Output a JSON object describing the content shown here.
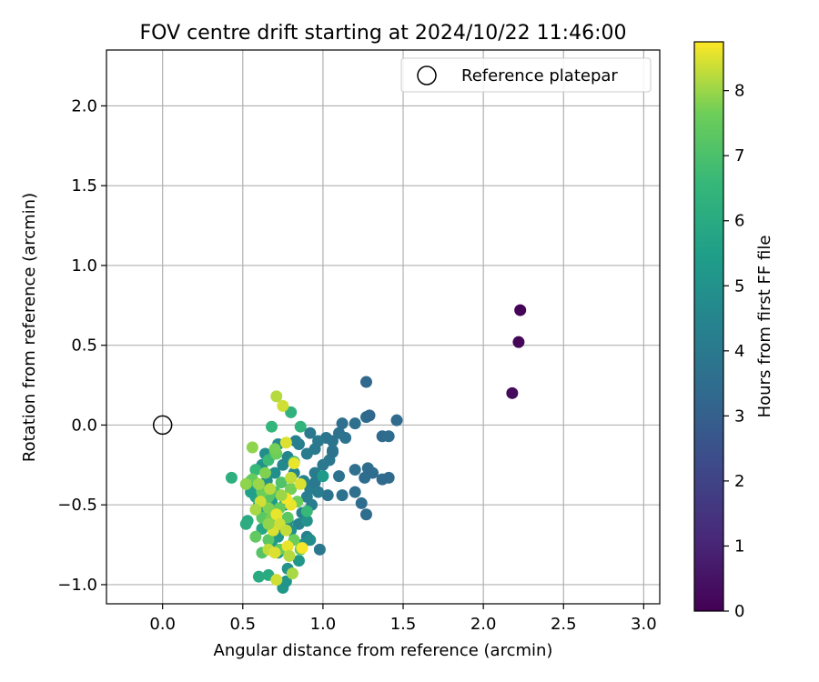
{
  "chart_data": {
    "type": "scatter",
    "title": "FOV centre drift starting at 2024/10/22 11:46:00",
    "xlabel": "Angular distance from reference (arcmin)",
    "ylabel": "Rotation from reference (arcmin)",
    "xlim": [
      -0.35,
      3.1
    ],
    "ylim": [
      -1.12,
      2.35
    ],
    "xticks": [
      0.0,
      0.5,
      1.0,
      1.5,
      2.0,
      2.5,
      3.0
    ],
    "xtick_labels": [
      "0.0",
      "0.5",
      "1.0",
      "1.5",
      "2.0",
      "2.5",
      "3.0"
    ],
    "yticks": [
      -1.0,
      -0.5,
      0.0,
      0.5,
      1.0,
      1.5,
      2.0
    ],
    "ytick_labels": [
      "−1.0",
      "−0.5",
      "0.0",
      "0.5",
      "1.0",
      "1.5",
      "2.0"
    ],
    "grid": true,
    "legend": {
      "placement": "top-right",
      "entries": [
        {
          "label": "Reference platepar",
          "marker": "open-circle"
        }
      ]
    },
    "reference": {
      "x": 0.0,
      "y": 0.0
    },
    "colorbar": {
      "label": "Hours from first FF file",
      "colormap": "viridis",
      "range": [
        0,
        8.75
      ],
      "ticks": [
        0,
        1,
        2,
        3,
        4,
        5,
        6,
        7,
        8
      ],
      "tick_labels": [
        "0",
        "1",
        "2",
        "3",
        "4",
        "5",
        "6",
        "7",
        "8"
      ]
    },
    "points": [
      {
        "x": 2.23,
        "y": 0.72,
        "h": 0.05
      },
      {
        "x": 2.22,
        "y": 0.52,
        "h": 0.15
      },
      {
        "x": 2.18,
        "y": 0.2,
        "h": 0.25
      },
      {
        "x": 1.27,
        "y": 0.27,
        "h": 3.3
      },
      {
        "x": 1.46,
        "y": 0.03,
        "h": 3.4
      },
      {
        "x": 1.27,
        "y": 0.05,
        "h": 3.5
      },
      {
        "x": 1.29,
        "y": 0.06,
        "h": 3.3
      },
      {
        "x": 1.37,
        "y": -0.07,
        "h": 3.4
      },
      {
        "x": 1.41,
        "y": -0.07,
        "h": 3.5
      },
      {
        "x": 1.2,
        "y": 0.01,
        "h": 3.6
      },
      {
        "x": 1.12,
        "y": 0.01,
        "h": 3.6
      },
      {
        "x": 1.14,
        "y": -0.08,
        "h": 3.7
      },
      {
        "x": 1.1,
        "y": -0.05,
        "h": 3.7
      },
      {
        "x": 1.06,
        "y": -0.1,
        "h": 3.8
      },
      {
        "x": 1.02,
        "y": -0.08,
        "h": 3.8
      },
      {
        "x": 1.06,
        "y": -0.16,
        "h": 3.9
      },
      {
        "x": 1.04,
        "y": -0.22,
        "h": 3.9
      },
      {
        "x": 1.2,
        "y": -0.28,
        "h": 3.6
      },
      {
        "x": 1.28,
        "y": -0.27,
        "h": 3.5
      },
      {
        "x": 1.31,
        "y": -0.3,
        "h": 3.5
      },
      {
        "x": 1.37,
        "y": -0.34,
        "h": 3.4
      },
      {
        "x": 1.41,
        "y": -0.33,
        "h": 3.4
      },
      {
        "x": 1.26,
        "y": -0.33,
        "h": 3.5
      },
      {
        "x": 1.1,
        "y": -0.32,
        "h": 3.7
      },
      {
        "x": 1.2,
        "y": -0.42,
        "h": 3.6
      },
      {
        "x": 1.24,
        "y": -0.49,
        "h": 3.5
      },
      {
        "x": 1.27,
        "y": -0.56,
        "h": 3.5
      },
      {
        "x": 1.12,
        "y": -0.44,
        "h": 3.7
      },
      {
        "x": 1.03,
        "y": -0.44,
        "h": 3.8
      },
      {
        "x": 0.98,
        "y": -0.78,
        "h": 3.9
      },
      {
        "x": 1.06,
        "y": -0.17,
        "h": 3.8
      },
      {
        "x": 0.95,
        "y": -0.15,
        "h": 4.0
      },
      {
        "x": 0.9,
        "y": -0.18,
        "h": 4.1
      },
      {
        "x": 0.85,
        "y": -0.12,
        "h": 4.2
      },
      {
        "x": 0.83,
        "y": -0.1,
        "h": 4.3
      },
      {
        "x": 0.92,
        "y": -0.05,
        "h": 4.0
      },
      {
        "x": 0.97,
        "y": -0.1,
        "h": 4.0
      },
      {
        "x": 1.0,
        "y": -0.25,
        "h": 4.0
      },
      {
        "x": 0.95,
        "y": -0.3,
        "h": 4.1
      },
      {
        "x": 0.92,
        "y": -0.4,
        "h": 4.2
      },
      {
        "x": 0.9,
        "y": -0.45,
        "h": 4.2
      },
      {
        "x": 0.87,
        "y": -0.55,
        "h": 4.3
      },
      {
        "x": 0.85,
        "y": -0.62,
        "h": 4.4
      },
      {
        "x": 0.9,
        "y": -0.7,
        "h": 4.3
      },
      {
        "x": 0.88,
        "y": -0.35,
        "h": 4.4
      },
      {
        "x": 0.82,
        "y": -0.3,
        "h": 4.5
      },
      {
        "x": 0.8,
        "y": -0.4,
        "h": 4.5
      },
      {
        "x": 0.76,
        "y": -0.5,
        "h": 4.6
      },
      {
        "x": 0.78,
        "y": -0.6,
        "h": 4.7
      },
      {
        "x": 0.8,
        "y": -0.66,
        "h": 4.8
      },
      {
        "x": 0.75,
        "y": -0.25,
        "h": 4.6
      },
      {
        "x": 0.7,
        "y": -0.3,
        "h": 4.9
      },
      {
        "x": 0.65,
        "y": -0.35,
        "h": 5.0
      },
      {
        "x": 0.62,
        "y": -0.25,
        "h": 5.0
      },
      {
        "x": 0.64,
        "y": -0.18,
        "h": 4.8
      },
      {
        "x": 0.72,
        "y": -0.12,
        "h": 4.7
      },
      {
        "x": 0.78,
        "y": -0.2,
        "h": 4.5
      },
      {
        "x": 0.75,
        "y": -1.02,
        "h": 5.2
      },
      {
        "x": 0.77,
        "y": -0.98,
        "h": 5.1
      },
      {
        "x": 0.78,
        "y": -0.9,
        "h": 5.0
      },
      {
        "x": 0.72,
        "y": -0.8,
        "h": 5.1
      },
      {
        "x": 0.68,
        "y": -0.75,
        "h": 5.3
      },
      {
        "x": 0.72,
        "y": -0.7,
        "h": 5.2
      },
      {
        "x": 0.75,
        "y": -0.65,
        "h": 5.1
      },
      {
        "x": 0.67,
        "y": -0.6,
        "h": 5.4
      },
      {
        "x": 0.63,
        "y": -0.55,
        "h": 5.5
      },
      {
        "x": 0.68,
        "y": -0.48,
        "h": 5.3
      },
      {
        "x": 0.6,
        "y": -0.5,
        "h": 5.6
      },
      {
        "x": 0.58,
        "y": -0.45,
        "h": 5.7
      },
      {
        "x": 0.55,
        "y": -0.42,
        "h": 5.5
      },
      {
        "x": 0.95,
        "y": -0.36,
        "h": 4.0
      },
      {
        "x": 0.97,
        "y": -0.42,
        "h": 4.1
      },
      {
        "x": 0.93,
        "y": -0.5,
        "h": 4.2
      },
      {
        "x": 1.0,
        "y": -0.32,
        "h": 5.4
      },
      {
        "x": 0.9,
        "y": -0.6,
        "h": 5.0
      },
      {
        "x": 0.87,
        "y": -0.75,
        "h": 5.0
      },
      {
        "x": 0.92,
        "y": -0.72,
        "h": 4.8
      },
      {
        "x": 0.85,
        "y": -0.85,
        "h": 5.2
      },
      {
        "x": 0.62,
        "y": -0.65,
        "h": 5.8
      },
      {
        "x": 0.53,
        "y": -0.6,
        "h": 6.0
      },
      {
        "x": 0.43,
        "y": -0.33,
        "h": 6.2
      },
      {
        "x": 0.52,
        "y": -0.62,
        "h": 6.1
      },
      {
        "x": 0.66,
        "y": -0.94,
        "h": 6.0
      },
      {
        "x": 0.6,
        "y": -0.95,
        "h": 6.0
      },
      {
        "x": 0.68,
        "y": -0.01,
        "h": 6.5
      },
      {
        "x": 0.8,
        "y": 0.08,
        "h": 6.3
      },
      {
        "x": 0.86,
        "y": -0.01,
        "h": 6.4
      },
      {
        "x": 0.9,
        "y": -0.54,
        "h": 6.6
      },
      {
        "x": 0.82,
        "y": -0.23,
        "h": 6.8
      },
      {
        "x": 0.7,
        "y": -0.18,
        "h": 6.9
      },
      {
        "x": 0.66,
        "y": -0.22,
        "h": 6.7
      },
      {
        "x": 0.58,
        "y": -0.28,
        "h": 6.6
      },
      {
        "x": 0.55,
        "y": -0.35,
        "h": 6.8
      },
      {
        "x": 0.7,
        "y": -0.42,
        "h": 7.0
      },
      {
        "x": 0.74,
        "y": -0.36,
        "h": 7.1
      },
      {
        "x": 0.66,
        "y": -0.45,
        "h": 7.2
      },
      {
        "x": 0.62,
        "y": -0.58,
        "h": 7.3
      },
      {
        "x": 0.58,
        "y": -0.7,
        "h": 7.4
      },
      {
        "x": 0.62,
        "y": -0.8,
        "h": 7.2
      },
      {
        "x": 0.66,
        "y": -0.72,
        "h": 7.3
      },
      {
        "x": 0.73,
        "y": -0.78,
        "h": 7.5
      },
      {
        "x": 0.82,
        "y": -0.72,
        "h": 7.6
      },
      {
        "x": 0.86,
        "y": -0.78,
        "h": 7.4
      },
      {
        "x": 0.78,
        "y": -0.58,
        "h": 7.3
      },
      {
        "x": 0.84,
        "y": -0.48,
        "h": 7.6
      },
      {
        "x": 0.8,
        "y": -0.4,
        "h": 7.7
      },
      {
        "x": 0.73,
        "y": -0.52,
        "h": 7.5
      },
      {
        "x": 0.68,
        "y": -0.58,
        "h": 7.7
      },
      {
        "x": 0.66,
        "y": -0.52,
        "h": 7.8
      },
      {
        "x": 0.62,
        "y": -0.42,
        "h": 7.6
      },
      {
        "x": 0.56,
        "y": -0.34,
        "h": 7.5
      },
      {
        "x": 0.52,
        "y": -0.37,
        "h": 7.9
      },
      {
        "x": 0.6,
        "y": -0.37,
        "h": 8.0
      },
      {
        "x": 0.64,
        "y": -0.3,
        "h": 7.8
      },
      {
        "x": 0.71,
        "y": -0.18,
        "h": 7.6
      },
      {
        "x": 0.7,
        "y": -0.15,
        "h": 7.7
      },
      {
        "x": 0.56,
        "y": -0.14,
        "h": 7.9
      },
      {
        "x": 0.71,
        "y": 0.18,
        "h": 8.2
      },
      {
        "x": 0.75,
        "y": 0.12,
        "h": 8.4
      },
      {
        "x": 0.77,
        "y": -0.11,
        "h": 8.5
      },
      {
        "x": 0.82,
        "y": -0.24,
        "h": 8.6
      },
      {
        "x": 0.86,
        "y": -0.37,
        "h": 8.5
      },
      {
        "x": 0.8,
        "y": -0.5,
        "h": 8.6
      },
      {
        "x": 0.77,
        "y": -0.46,
        "h": 8.7
      },
      {
        "x": 0.71,
        "y": -0.56,
        "h": 8.6
      },
      {
        "x": 0.69,
        "y": -0.66,
        "h": 8.5
      },
      {
        "x": 0.73,
        "y": -0.62,
        "h": 8.4
      },
      {
        "x": 0.66,
        "y": -0.78,
        "h": 8.3
      },
      {
        "x": 0.7,
        "y": -0.8,
        "h": 8.5
      },
      {
        "x": 0.78,
        "y": -0.76,
        "h": 8.6
      },
      {
        "x": 0.79,
        "y": -0.82,
        "h": 8.2
      },
      {
        "x": 0.81,
        "y": -0.93,
        "h": 8.1
      },
      {
        "x": 0.71,
        "y": -0.97,
        "h": 8.4
      },
      {
        "x": 0.87,
        "y": -0.77,
        "h": 8.7
      },
      {
        "x": 0.77,
        "y": -0.66,
        "h": 8.3
      },
      {
        "x": 0.74,
        "y": -0.44,
        "h": 8.0
      },
      {
        "x": 0.67,
        "y": -0.4,
        "h": 8.2
      },
      {
        "x": 0.61,
        "y": -0.48,
        "h": 8.4
      },
      {
        "x": 0.58,
        "y": -0.53,
        "h": 8.1
      },
      {
        "x": 0.66,
        "y": -0.62,
        "h": 7.9
      },
      {
        "x": 0.8,
        "y": -0.33,
        "h": 8.3
      }
    ]
  }
}
